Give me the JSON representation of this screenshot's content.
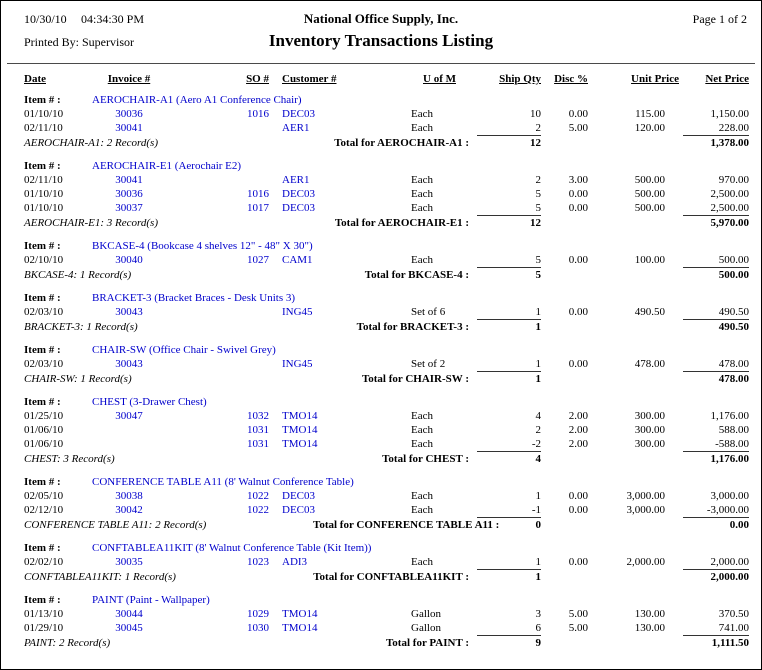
{
  "report": {
    "date": "10/30/10",
    "time": "04:34:30 PM",
    "company": "National Office Supply, Inc.",
    "page": "Page 1 of 2",
    "printed_by": "Printed By: Supervisor",
    "title": "Inventory Transactions Listing"
  },
  "colors": {
    "data_blue": "#0000CC"
  },
  "table": {
    "columns": [
      "Date",
      "Invoice #",
      "SO #",
      "Customer #",
      "U of M",
      "Ship Qty",
      "Disc %",
      "Unit Price",
      "Net Price"
    ],
    "item_label": "Item # :",
    "groups": [
      {
        "item": "AEROCHAIR-A1 (Aero A1 Conference Chair)",
        "rows": [
          {
            "date": "01/10/10",
            "invoice": "30036",
            "so": "1016",
            "customer": "DEC03",
            "uofm": "Each",
            "qty": "10",
            "disc": "0.00",
            "unit": "115.00",
            "net": "1,150.00"
          },
          {
            "date": "02/11/10",
            "invoice": "30041",
            "so": "",
            "customer": "AER1",
            "uofm": "Each",
            "qty": "2",
            "disc": "5.00",
            "unit": "120.00",
            "net": "228.00"
          }
        ],
        "records": "AEROCHAIR-A1: 2 Record(s)",
        "total_label": "Total for AEROCHAIR-A1 :",
        "total_qty": "12",
        "total_net": "1,378.00"
      },
      {
        "item": "AEROCHAIR-E1 (Aerochair E2)",
        "rows": [
          {
            "date": "02/11/10",
            "invoice": "30041",
            "so": "",
            "customer": "AER1",
            "uofm": "Each",
            "qty": "2",
            "disc": "3.00",
            "unit": "500.00",
            "net": "970.00"
          },
          {
            "date": "01/10/10",
            "invoice": "30036",
            "so": "1016",
            "customer": "DEC03",
            "uofm": "Each",
            "qty": "5",
            "disc": "0.00",
            "unit": "500.00",
            "net": "2,500.00"
          },
          {
            "date": "01/10/10",
            "invoice": "30037",
            "so": "1017",
            "customer": "DEC03",
            "uofm": "Each",
            "qty": "5",
            "disc": "0.00",
            "unit": "500.00",
            "net": "2,500.00"
          }
        ],
        "records": "AEROCHAIR-E1: 3 Record(s)",
        "total_label": "Total for AEROCHAIR-E1 :",
        "total_qty": "12",
        "total_net": "5,970.00"
      },
      {
        "item": "BKCASE-4 (Bookcase 4 shelves 12\" - 48\" X 30\")",
        "rows": [
          {
            "date": "02/10/10",
            "invoice": "30040",
            "so": "1027",
            "customer": "CAM1",
            "uofm": "Each",
            "qty": "5",
            "disc": "0.00",
            "unit": "100.00",
            "net": "500.00"
          }
        ],
        "records": "BKCASE-4: 1 Record(s)",
        "total_label": "Total for BKCASE-4 :",
        "total_qty": "5",
        "total_net": "500.00"
      },
      {
        "item": "BRACKET-3 (Bracket Braces - Desk Units 3)",
        "rows": [
          {
            "date": "02/03/10",
            "invoice": "30043",
            "so": "",
            "customer": "ING45",
            "uofm": "Set of 6",
            "qty": "1",
            "disc": "0.00",
            "unit": "490.50",
            "net": "490.50"
          }
        ],
        "records": "BRACKET-3: 1 Record(s)",
        "total_label": "Total for BRACKET-3 :",
        "total_qty": "1",
        "total_net": "490.50"
      },
      {
        "item": "CHAIR-SW (Office Chair - Swivel Grey)",
        "rows": [
          {
            "date": "02/03/10",
            "invoice": "30043",
            "so": "",
            "customer": "ING45",
            "uofm": "Set of 2",
            "qty": "1",
            "disc": "0.00",
            "unit": "478.00",
            "net": "478.00"
          }
        ],
        "records": "CHAIR-SW: 1 Record(s)",
        "total_label": "Total for CHAIR-SW :",
        "total_qty": "1",
        "total_net": "478.00"
      },
      {
        "item": "CHEST (3-Drawer Chest)",
        "rows": [
          {
            "date": "01/25/10",
            "invoice": "30047",
            "so": "1032",
            "customer": "TMO14",
            "uofm": "Each",
            "qty": "4",
            "disc": "2.00",
            "unit": "300.00",
            "net": "1,176.00"
          },
          {
            "date": "01/06/10",
            "invoice": "",
            "so": "1031",
            "customer": "TMO14",
            "uofm": "Each",
            "qty": "2",
            "disc": "2.00",
            "unit": "300.00",
            "net": "588.00"
          },
          {
            "date": "01/06/10",
            "invoice": "",
            "so": "1031",
            "customer": "TMO14",
            "uofm": "Each",
            "qty": "-2",
            "disc": "2.00",
            "unit": "300.00",
            "net": "-588.00"
          }
        ],
        "records": "CHEST: 3 Record(s)",
        "total_label": "Total for CHEST :",
        "total_qty": "4",
        "total_net": "1,176.00"
      },
      {
        "item": "CONFERENCE TABLE A11 (8' Walnut Conference Table)",
        "rows": [
          {
            "date": "02/05/10",
            "invoice": "30038",
            "so": "1022",
            "customer": "DEC03",
            "uofm": "Each",
            "qty": "1",
            "disc": "0.00",
            "unit": "3,000.00",
            "net": "3,000.00"
          },
          {
            "date": "02/12/10",
            "invoice": "30042",
            "so": "1022",
            "customer": "DEC03",
            "uofm": "Each",
            "qty": "-1",
            "disc": "0.00",
            "unit": "3,000.00",
            "net": "-3,000.00"
          }
        ],
        "records": "CONFERENCE TABLE A11: 2 Record(s)",
        "total_label": "Total for CONFERENCE TABLE A11 :",
        "total_qty": "0",
        "total_net": "0.00"
      },
      {
        "item": "CONFTABLEA11KIT (8' Walnut Conference Table (Kit Item))",
        "rows": [
          {
            "date": "02/02/10",
            "invoice": "30035",
            "so": "1023",
            "customer": "ADI3",
            "uofm": "Each",
            "qty": "1",
            "disc": "0.00",
            "unit": "2,000.00",
            "net": "2,000.00"
          }
        ],
        "records": "CONFTABLEA11KIT: 1 Record(s)",
        "total_label": "Total for CONFTABLEA11KIT :",
        "total_qty": "1",
        "total_net": "2,000.00"
      },
      {
        "item": "PAINT (Paint - Wallpaper)",
        "rows": [
          {
            "date": "01/13/10",
            "invoice": "30044",
            "so": "1029",
            "customer": "TMO14",
            "uofm": "Gallon",
            "qty": "3",
            "disc": "5.00",
            "unit": "130.00",
            "net": "370.50"
          },
          {
            "date": "01/29/10",
            "invoice": "30045",
            "so": "1030",
            "customer": "TMO14",
            "uofm": "Gallon",
            "qty": "6",
            "disc": "5.00",
            "unit": "130.00",
            "net": "741.00"
          }
        ],
        "records": "PAINT: 2 Record(s)",
        "total_label": "Total for PAINT :",
        "total_qty": "9",
        "total_net": "1,111.50"
      }
    ]
  }
}
